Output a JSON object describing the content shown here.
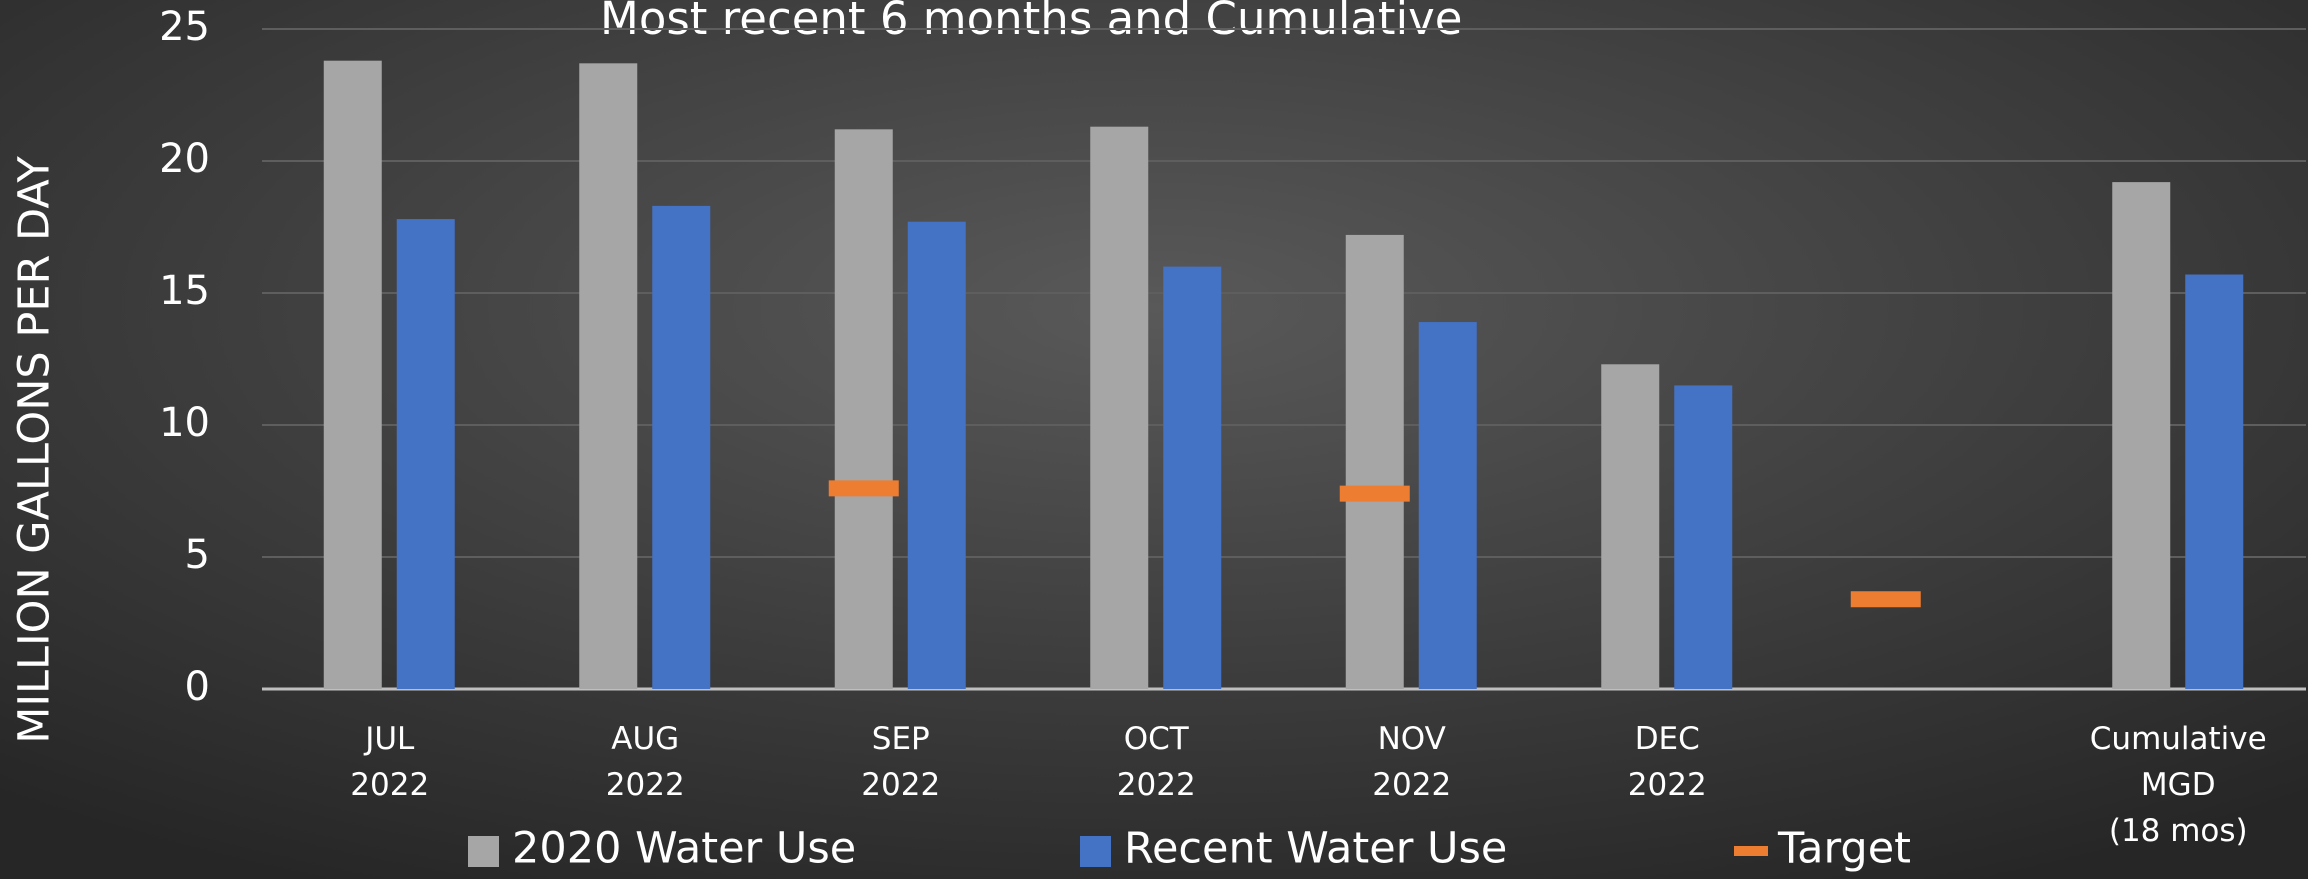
{
  "chart_data": {
    "type": "bar",
    "title": "Most recent 6 months and Cumulative",
    "y_label": "MILLION GALLONS PER DAY",
    "categories": [
      [
        "JUL",
        "2022"
      ],
      [
        "AUG",
        "2022"
      ],
      [
        "SEP",
        "2022"
      ],
      [
        "OCT",
        "2022"
      ],
      [
        "NOV",
        "2022"
      ],
      [
        "DEC",
        "2022"
      ],
      null,
      [
        "Cumulative",
        "MGD",
        "(18 mos)"
      ]
    ],
    "series": [
      {
        "name": "2020 Water Use",
        "color": "#a6a6a6",
        "marker": "bar",
        "values": [
          23.8,
          23.7,
          21.2,
          21.3,
          17.2,
          12.3,
          null,
          19.2
        ]
      },
      {
        "name": "Recent Water Use",
        "color": "#4472c4",
        "marker": "bar",
        "values": [
          17.8,
          18.3,
          17.7,
          16.0,
          13.9,
          11.5,
          null,
          15.7
        ]
      },
      {
        "name": "Target",
        "color": "#ed7d31",
        "marker": "dash",
        "values": [
          null,
          null,
          7.6,
          null,
          7.4,
          null,
          3.4,
          null
        ]
      }
    ],
    "ylim": [
      0,
      25
    ],
    "yticks": [
      0,
      5,
      10,
      15,
      20,
      25
    ],
    "grid": true,
    "legend": "bottom"
  }
}
